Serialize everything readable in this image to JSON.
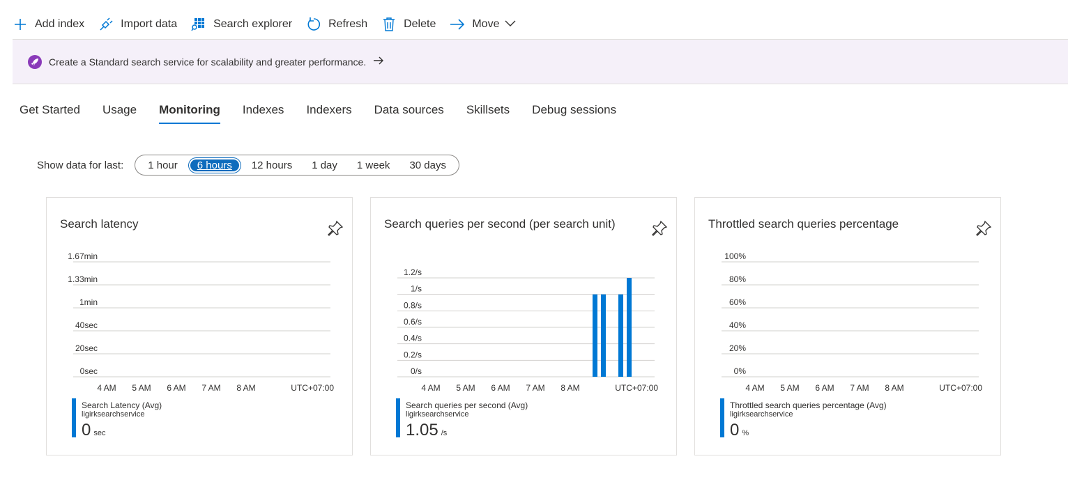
{
  "toolbar": {
    "items": [
      {
        "label": "Add index",
        "icon": "plus-icon"
      },
      {
        "label": "Import data",
        "icon": "plug-icon"
      },
      {
        "label": "Search explorer",
        "icon": "grid-search-icon"
      },
      {
        "label": "Refresh",
        "icon": "refresh-icon"
      },
      {
        "label": "Delete",
        "icon": "trash-icon"
      },
      {
        "label": "Move",
        "icon": "arrow-right-icon"
      }
    ]
  },
  "banner": {
    "message": "Create a Standard search service for scalability and greater performance.",
    "icon": "rocket-icon"
  },
  "tabs": [
    "Get Started",
    "Usage",
    "Monitoring",
    "Indexes",
    "Indexers",
    "Data sources",
    "Skillsets",
    "Debug sessions"
  ],
  "active_tab": "Monitoring",
  "range": {
    "label": "Show data for last:",
    "options": [
      "1 hour",
      "6 hours",
      "12 hours",
      "1 day",
      "1 week",
      "30 days"
    ],
    "selected": "6 hours"
  },
  "accent_color": "#0078d4",
  "chart_data": [
    {
      "type": "bar",
      "title": "Search latency",
      "y_ticks": [
        "0sec",
        "20sec",
        "40sec",
        "1min",
        "1.33min",
        "1.67min"
      ],
      "ylim": [
        0,
        100
      ],
      "x_ticks": [
        "4 AM",
        "5 AM",
        "6 AM",
        "7 AM",
        "8 AM"
      ],
      "timezone": "UTC+07:00",
      "series": [
        {
          "name": "Search Latency (Avg)",
          "values": []
        }
      ],
      "legend": {
        "name": "Search Latency (Avg)",
        "resource": "ligirksearchservice",
        "value": "0",
        "unit": "sec"
      }
    },
    {
      "type": "bar",
      "title": "Search queries per second (per search unit)",
      "y_ticks": [
        "0/s",
        "0.2/s",
        "0.4/s",
        "0.6/s",
        "0.8/s",
        "1/s",
        "1.2/s"
      ],
      "ylim": [
        0,
        1.2
      ],
      "x_ticks": [
        "4 AM",
        "5 AM",
        "6 AM",
        "7 AM",
        "8 AM"
      ],
      "timezone": "UTC+07:00",
      "series": [
        {
          "name": "Search queries per second (Avg)",
          "values": [
            1.0,
            1.0,
            1.0,
            1.2
          ]
        }
      ],
      "legend": {
        "name": "Search queries per second (Avg)",
        "resource": "ligirksearchservice",
        "value": "1.05",
        "unit": "/s"
      }
    },
    {
      "type": "bar",
      "title": "Throttled search queries percentage",
      "y_ticks": [
        "0%",
        "20%",
        "40%",
        "60%",
        "80%",
        "100%"
      ],
      "ylim": [
        0,
        100
      ],
      "x_ticks": [
        "4 AM",
        "5 AM",
        "6 AM",
        "7 AM",
        "8 AM"
      ],
      "timezone": "UTC+07:00",
      "series": [
        {
          "name": "Throttled search queries percentage (Avg)",
          "values": []
        }
      ],
      "legend": {
        "name": "Throttled search queries percentage (Avg)",
        "resource": "ligirksearchservice",
        "value": "0",
        "unit": "%"
      }
    }
  ]
}
